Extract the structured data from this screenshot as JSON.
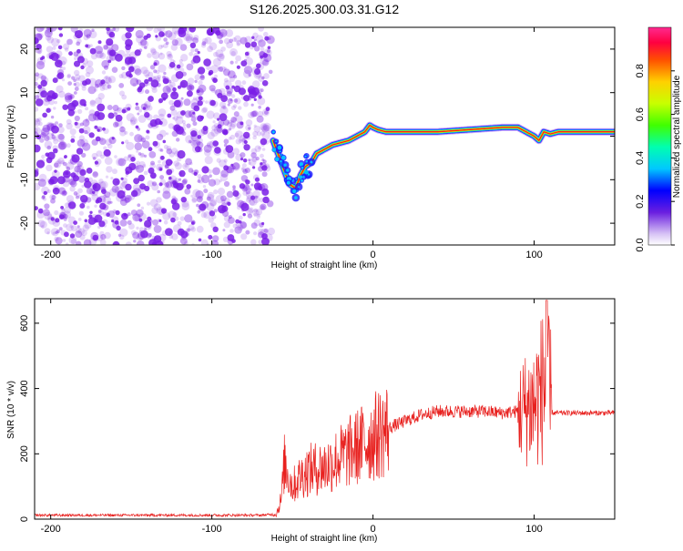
{
  "figure_title": "S126.2025.300.03.31.G12",
  "colors": {
    "scatter_purple": "#7a1fe6",
    "snr_red": "#e8211f"
  },
  "chart_data": [
    {
      "type": "heatmap",
      "title": "S126.2025.300.03.31.G12",
      "xlabel": "Height of straight line (km)",
      "ylabel": "Frequency (Hz)",
      "xlim": [
        -210,
        150
      ],
      "ylim": [
        -25,
        25
      ],
      "x_ticks": [
        -200,
        -100,
        0,
        100
      ],
      "x_tick_labels": [
        "-200",
        "-100",
        "0",
        "100"
      ],
      "y_ticks": [
        -20,
        -10,
        0,
        10,
        20
      ],
      "y_tick_labels": [
        "-20",
        "-10",
        "0",
        "10",
        "20"
      ],
      "colorbar": {
        "label": "Normalized spectral amplitude",
        "range": [
          0,
          1
        ],
        "ticks": [
          0,
          0.2,
          0.4,
          0.6,
          0.8
        ],
        "tick_labels": [
          "0.0",
          "0.2",
          "0.4",
          "0.6",
          "0.8"
        ]
      },
      "noise_region_x": [
        -210,
        -63
      ],
      "ridge": {
        "x": [
          -62,
          -58,
          -55,
          -52,
          -48,
          -45,
          -42,
          -38,
          -35,
          -30,
          -25,
          -20,
          -15,
          -10,
          -5,
          -2,
          0,
          3,
          8,
          15,
          25,
          40,
          60,
          80,
          90,
          95,
          100,
          103,
          106,
          110,
          115,
          120,
          130,
          140,
          150
        ],
        "y": [
          -1,
          -5,
          -8,
          -11,
          -12,
          -9,
          -7,
          -6,
          -4,
          -3,
          -2,
          -1.5,
          -1,
          0,
          1,
          2.5,
          2,
          1.5,
          1,
          1,
          1,
          1,
          1.5,
          2,
          2,
          1,
          0,
          -1,
          1,
          0.5,
          1,
          1,
          1,
          1,
          1
        ]
      }
    },
    {
      "type": "line",
      "xlabel": "Height of straight line (km)",
      "ylabel": "SNR (10 * v/v)",
      "xlim": [
        -210,
        150
      ],
      "ylim": [
        0,
        675
      ],
      "x_ticks": [
        -200,
        -100,
        0,
        100
      ],
      "x_tick_labels": [
        "-200",
        "-100",
        "0",
        "100"
      ],
      "y_ticks": [
        0,
        200,
        400,
        600
      ],
      "y_tick_labels": [
        "0",
        "200",
        "400",
        "600"
      ],
      "series": [
        {
          "envelope_x": [
            -210,
            -140,
            -100,
            -70,
            -60,
            -57,
            -55,
            -50,
            -45,
            -40,
            -30,
            -20,
            -10,
            0,
            10,
            20,
            30,
            40,
            50,
            60,
            70,
            80,
            90,
            95,
            100,
            103,
            105,
            107,
            108,
            109,
            110,
            112,
            120,
            130,
            140,
            150
          ],
          "envelope_y": [
            12,
            12,
            12,
            12,
            15,
            60,
            170,
            100,
            130,
            150,
            160,
            190,
            220,
            250,
            280,
            300,
            320,
            330,
            330,
            330,
            330,
            325,
            330,
            340,
            350,
            380,
            400,
            420,
            380,
            360,
            330,
            325,
            325,
            325,
            325,
            325
          ]
        }
      ]
    }
  ]
}
